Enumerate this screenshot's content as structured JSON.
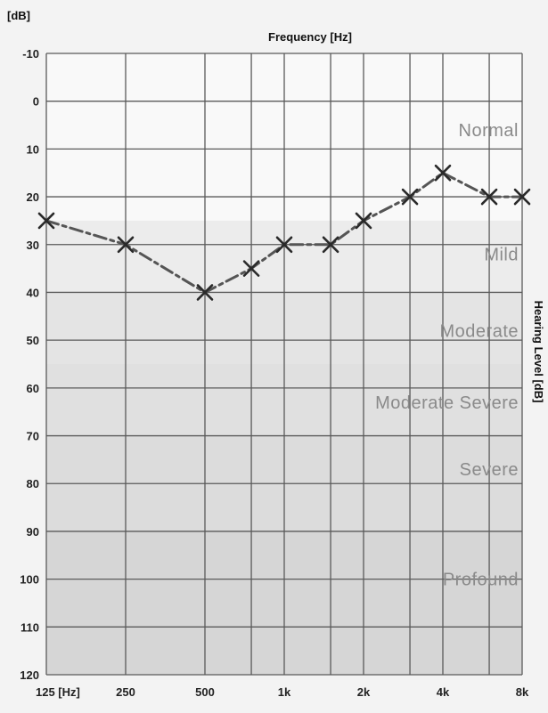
{
  "chart_data": {
    "type": "line",
    "title": "Frequency [Hz]",
    "xlabel": "Frequency [Hz]",
    "ylabel": "Hearing Level [dB]",
    "y_unit_label": "[dB]",
    "y_axis_inverted": true,
    "ylim": [
      -10,
      120
    ],
    "yticks": [
      -10,
      0,
      10,
      20,
      30,
      40,
      50,
      60,
      70,
      80,
      90,
      100,
      110,
      120
    ],
    "x_scale": "log",
    "xlim": [
      125,
      8000
    ],
    "x_tick_values": [
      125,
      250,
      500,
      1000,
      2000,
      4000,
      8000
    ],
    "x_tick_labels": [
      "125 [Hz]",
      "250",
      "500",
      "1k",
      "2k",
      "4k",
      "8k"
    ],
    "x_gridlines": [
      125,
      250,
      500,
      750,
      1000,
      1500,
      2000,
      3000,
      4000,
      6000,
      8000
    ],
    "grid": true,
    "series": [
      {
        "x": [
          125,
          250,
          500,
          750,
          1000,
          1500,
          2000,
          3000,
          4000,
          6000,
          8000
        ],
        "y": [
          25,
          30,
          40,
          35,
          30,
          30,
          25,
          20,
          15,
          20,
          20
        ]
      }
    ],
    "bands": [
      {
        "label": "Normal",
        "y_range": [
          -10,
          25
        ],
        "color": "#f9f9f9"
      },
      {
        "label": "Mild",
        "y_range": [
          25,
          40
        ],
        "color": "#ececec"
      },
      {
        "label": "Moderate",
        "y_range": [
          40,
          55
        ],
        "color": "#e4e4e4"
      },
      {
        "label": "Moderate Severe",
        "y_range": [
          55,
          70
        ],
        "color": "#e0e0e0"
      },
      {
        "label": "Severe",
        "y_range": [
          70,
          90
        ],
        "color": "#dcdcdc"
      },
      {
        "label": "Profound",
        "y_range": [
          90,
          120
        ],
        "color": "#d6d6d6"
      }
    ],
    "zone_labels": [
      {
        "text": "Normal",
        "y": 6
      },
      {
        "text": "Mild",
        "y": 32
      },
      {
        "text": "Moderate",
        "y": 48
      },
      {
        "text": "Moderate Severe",
        "y": 63
      },
      {
        "text": "Severe",
        "y": 77
      },
      {
        "text": "Profound",
        "y": 100
      }
    ]
  }
}
